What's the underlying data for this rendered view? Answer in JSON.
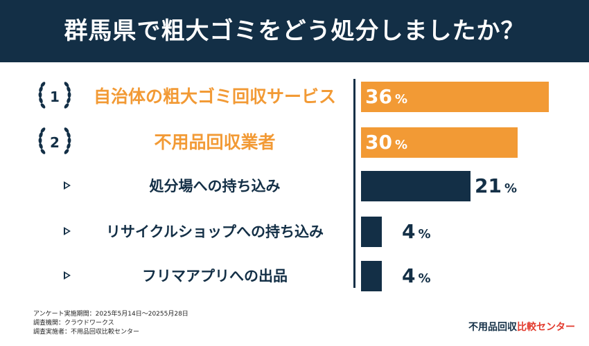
{
  "title": "群馬県で粗大ゴミをどう処分しましたか？",
  "colors": {
    "navy": "#132f46",
    "orange": "#f29a35",
    "brand_red": "#e23a2d"
  },
  "chart_data": {
    "type": "bar",
    "orientation": "horizontal",
    "categories": [
      "自治体の粗大ゴミ回収サービス",
      "不用品回収業者",
      "処分場への持ち込み",
      "リサイクルショップへの持ち込み",
      "フリマアプリへの出品"
    ],
    "values": [
      36,
      30,
      21,
      4,
      4
    ],
    "unit": "%",
    "ranks": [
      "1",
      "2",
      "",
      "",
      ""
    ],
    "bar_colors": [
      "#f29a35",
      "#f29a35",
      "#132f46",
      "#132f46",
      "#132f46"
    ],
    "xlim": [
      0,
      36
    ],
    "grid": false,
    "legend": "none"
  },
  "footer": {
    "period": "アンケート実施期間：2025年5月14日～20255月28日",
    "org": "調査機関：クラウドワークス",
    "implementer": "調査実施者：不用品回収比較センター"
  },
  "brand": {
    "main": "不用品回収",
    "accent": "比較センター"
  }
}
